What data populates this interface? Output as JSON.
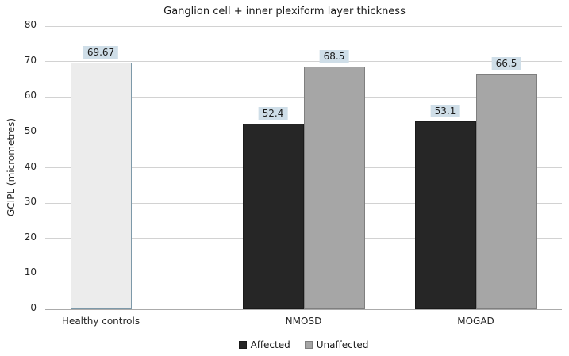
{
  "chart_data": {
    "type": "bar",
    "title": "Ganglion cell + inner plexiform layer thickness",
    "xlabel": "",
    "ylabel": "GCIPL (micrometres)",
    "ylim": [
      0,
      80
    ],
    "ytick_step": 10,
    "yticks": [
      0,
      10,
      20,
      30,
      40,
      50,
      60,
      70,
      80
    ],
    "grid": true,
    "legend_position": "bottom-center",
    "categories": [
      "Healthy controls",
      "NMOSD",
      "MOGAD"
    ],
    "series": [
      {
        "name": "Affected",
        "color": "#262626",
        "border_color": "#1a1a1a",
        "values": [
          69.67,
          52.4,
          53.1
        ],
        "labels": [
          "69.67",
          "52.4",
          "53.1"
        ],
        "point_overrides": {
          "0": {
            "color": "#ececec",
            "border_color": "#7d99a9"
          }
        }
      },
      {
        "name": "Unaffected",
        "color": "#a6a6a6",
        "border_color": "#7f7f7f",
        "values": [
          null,
          68.5,
          66.5
        ],
        "labels": [
          null,
          "68.5",
          "66.5"
        ]
      }
    ],
    "style": {
      "value_label_bg": "#cfdee8",
      "gridline_color": "#d2d2d2",
      "axis_line_color": "#ababab"
    }
  }
}
